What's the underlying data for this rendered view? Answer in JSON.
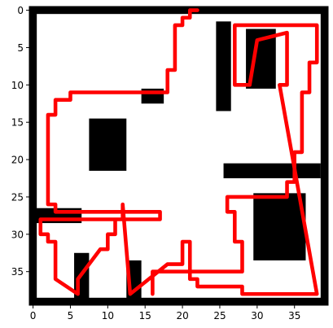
{
  "chart_data": {
    "type": "heatmap",
    "title": "",
    "xlabel": "",
    "ylabel": "",
    "xlim": [
      -0.5,
      39.5
    ],
    "ylim": [
      39.5,
      -0.5
    ],
    "x_ticks": [
      0,
      5,
      10,
      15,
      20,
      25,
      30,
      35
    ],
    "y_ticks": [
      0,
      5,
      10,
      15,
      20,
      25,
      30,
      35
    ],
    "x_tick_labels": [
      "0",
      "5",
      "10",
      "15",
      "20",
      "25",
      "30",
      "35"
    ],
    "y_tick_labels": [
      "0",
      "5",
      "10",
      "15",
      "20",
      "25",
      "30",
      "35"
    ],
    "grid": false,
    "colors": {
      "wall": "#000000",
      "open": "#ffffff",
      "path": "#ff0000"
    },
    "blocks": [
      {
        "x0": 8,
        "y0": 15,
        "x1": 12,
        "y1": 21
      },
      {
        "x0": 29,
        "y0": 3,
        "x1": 32,
        "y1": 10
      },
      {
        "x0": 30,
        "y0": 25,
        "x1": 36,
        "y1": 33
      },
      {
        "x0": 15,
        "y0": 11,
        "x1": 17,
        "y1": 12
      },
      {
        "x0": 0,
        "y0": 27,
        "x1": 6,
        "y1": 28
      },
      {
        "x0": 6,
        "y0": 33,
        "x1": 7,
        "y1": 39
      },
      {
        "x0": 13,
        "y0": 34,
        "x1": 14,
        "y1": 39
      },
      {
        "x0": 25,
        "y0": 2,
        "x1": 26,
        "y1": 13
      },
      {
        "x0": 26,
        "y0": 21,
        "x1": 38,
        "y1": 22
      }
    ],
    "series": [
      {
        "points": [
          [
            22,
            0
          ],
          [
            21,
            0
          ],
          [
            21,
            1
          ],
          [
            20,
            1
          ],
          [
            20,
            2
          ],
          [
            19,
            2
          ],
          [
            19,
            8
          ],
          [
            18,
            8
          ],
          [
            18,
            11
          ],
          [
            5,
            11
          ],
          [
            5,
            12
          ],
          [
            3,
            12
          ],
          [
            3,
            14
          ],
          [
            2,
            14
          ],
          [
            2,
            26
          ],
          [
            3,
            26
          ],
          [
            3,
            27
          ],
          [
            17,
            27
          ],
          [
            17,
            28
          ],
          [
            1,
            28
          ],
          [
            1,
            30
          ],
          [
            2,
            30
          ],
          [
            2,
            31
          ],
          [
            3,
            31
          ],
          [
            3,
            36
          ],
          [
            6,
            38
          ],
          [
            6,
            36
          ],
          [
            9,
            32
          ],
          [
            10,
            32
          ],
          [
            10,
            30
          ],
          [
            11,
            30
          ],
          [
            11,
            28
          ],
          [
            12,
            28
          ],
          [
            12,
            26
          ],
          [
            13,
            38
          ],
          [
            18,
            34
          ],
          [
            20,
            34
          ],
          [
            20,
            31
          ],
          [
            21,
            31
          ],
          [
            21,
            36
          ],
          [
            22,
            36
          ],
          [
            22,
            37
          ],
          [
            28,
            37
          ],
          [
            28,
            38
          ],
          [
            38,
            38
          ],
          [
            33,
            10
          ],
          [
            34,
            10
          ],
          [
            34,
            3
          ],
          [
            30,
            4
          ],
          [
            29,
            10
          ],
          [
            27,
            10
          ],
          [
            27,
            2
          ],
          [
            38,
            2
          ],
          [
            38,
            7
          ],
          [
            37,
            7
          ],
          [
            37,
            11
          ],
          [
            36,
            11
          ],
          [
            36,
            19
          ],
          [
            35,
            19
          ],
          [
            35,
            23
          ],
          [
            34,
            23
          ],
          [
            34,
            25
          ],
          [
            26,
            25
          ],
          [
            26,
            27
          ],
          [
            27,
            27
          ],
          [
            27,
            31
          ],
          [
            28,
            31
          ],
          [
            28,
            35
          ],
          [
            16,
            35
          ],
          [
            16,
            38
          ]
        ]
      }
    ]
  }
}
